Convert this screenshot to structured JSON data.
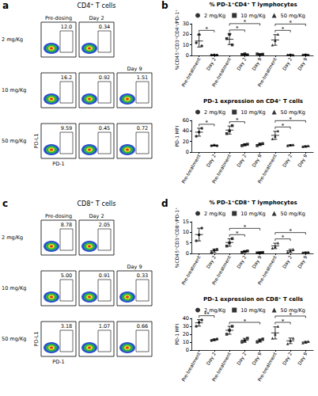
{
  "chart_data": [
    {
      "type": "gate_plots",
      "panel": "a",
      "title": "CD4⁺ T cells",
      "x_label": "PD-1",
      "y_label": "PD-L1",
      "columns": [
        "Pre-dosing",
        "Day 2",
        "Day 9"
      ],
      "rows": [
        {
          "label": "2 mg/Kg",
          "values": [
            12.0,
            0.34,
            null
          ],
          "value_labels": [
            "12.0",
            "0.34",
            null
          ]
        },
        {
          "label": "10 mg/Kg",
          "values": [
            16.2,
            0.92,
            1.51
          ],
          "value_labels": [
            "16.2",
            "0.92",
            "1.51"
          ]
        },
        {
          "label": "50 mg/Kg",
          "values": [
            9.59,
            0.45,
            0.72
          ],
          "value_labels": [
            "9.59",
            "0.45",
            "0.72"
          ]
        }
      ]
    },
    {
      "type": "dot_plot",
      "panel": "b",
      "title": "% PD-1⁺CD4⁺ T lymphocytes",
      "y_label": "%CD45⁺CD3⁺CD4⁺/PD-1⁺",
      "categories": [
        "Pre-treatment",
        "Day 2",
        "Pre-treatment",
        "Day 2",
        "Day 9",
        "Pre-treatment",
        "Day 2",
        "Day 9"
      ],
      "ylim": [
        0,
        30
      ],
      "yticks": [
        0,
        10,
        20,
        30
      ],
      "grid": false,
      "legend": "top",
      "series": [
        {
          "name": "2 mg/Kg",
          "marker": "circle",
          "color": "#000000",
          "values": [
            13.67,
            0.4,
            null,
            null,
            null,
            null,
            null,
            null
          ],
          "errors": [
            5.69,
            0.1,
            null,
            null,
            null,
            null,
            null,
            null
          ],
          "points": [
            [
              12,
              20,
              9
            ],
            [
              0.3,
              0.5,
              0.4
            ],
            null,
            null,
            null,
            null,
            null,
            null
          ],
          "significance": [
            {
              "from": 0,
              "to": 1,
              "label": "*"
            }
          ]
        },
        {
          "name": "10 mg/Kg",
          "marker": "square",
          "color": "#000000",
          "values": [
            null,
            null,
            15.33,
            1.0,
            1.17,
            null,
            null,
            null
          ],
          "errors": [
            null,
            null,
            5.03,
            0.46,
            0.35,
            null,
            null,
            null
          ],
          "points": [
            null,
            null,
            [
              16,
              20,
              10
            ],
            [
              0.9,
              1.5,
              0.6
            ],
            [
              1.5,
              0.8,
              1.2
            ],
            null,
            null,
            null
          ],
          "significance": [
            {
              "from": 2,
              "to": 3,
              "label": "*"
            },
            {
              "from": 2,
              "to": 4,
              "label": "*"
            }
          ]
        },
        {
          "name": "50 mg/Kg",
          "marker": "triangle",
          "color": "#000000",
          "values": [
            null,
            null,
            null,
            null,
            null,
            14.67,
            0.63,
            0.8
          ],
          "errors": [
            null,
            null,
            null,
            null,
            null,
            5.03,
            0.32,
            0.36
          ],
          "points": [
            null,
            null,
            null,
            null,
            null,
            [
              10,
              14,
              20
            ],
            [
              0.5,
              1.0,
              0.4
            ],
            [
              0.7,
              1.2,
              0.5
            ]
          ],
          "significance": [
            {
              "from": 5,
              "to": 6,
              "label": "*"
            },
            {
              "from": 5,
              "to": 7,
              "label": "*"
            }
          ]
        }
      ]
    },
    {
      "type": "dot_plot",
      "title": "PD-1 expression on CD4⁺ T cells",
      "y_label": "PD-1 MFI",
      "categories": [
        "Pre-treatment",
        "Day 2",
        "Pre-treatment",
        "Day 2",
        "Day 9",
        "Pre-treatment",
        "Day 2",
        "Day 9"
      ],
      "ylim": [
        0,
        60
      ],
      "yticks": [
        0,
        20,
        40,
        60
      ],
      "grid": false,
      "legend": "top",
      "series": [
        {
          "name": "2 mg/Kg",
          "marker": "circle",
          "color": "#000000",
          "values": [
            37.67,
            12.33,
            null,
            null,
            null,
            null,
            null,
            null
          ],
          "errors": [
            7.51,
            0.58,
            null,
            null,
            null,
            null,
            null,
            null
          ],
          "points": [
            [
              30,
              38,
              45
            ],
            [
              12,
              13,
              12
            ],
            null,
            null,
            null,
            null,
            null,
            null
          ],
          "significance": [
            {
              "from": 0,
              "to": 1,
              "label": "*"
            }
          ]
        },
        {
          "name": "10 mg/Kg",
          "marker": "square",
          "color": "#000000",
          "values": [
            null,
            null,
            41.67,
            13.67,
            14.33,
            null,
            null,
            null
          ],
          "errors": [
            null,
            null,
            7.64,
            1.53,
            2.08,
            null,
            null,
            null
          ],
          "points": [
            null,
            null,
            [
              35,
              40,
              50
            ],
            [
              12,
              14,
              15
            ],
            [
              12,
              15,
              16
            ],
            null,
            null,
            null
          ],
          "significance": [
            {
              "from": 2,
              "to": 3,
              "label": "*"
            }
          ]
        },
        {
          "name": "50 mg/Kg",
          "marker": "triangle",
          "color": "#000000",
          "values": [
            null,
            null,
            null,
            null,
            null,
            31.67,
            13,
            11
          ],
          "errors": [
            null,
            null,
            null,
            null,
            null,
            7.64,
            1,
            1
          ],
          "points": [
            null,
            null,
            null,
            null,
            null,
            [
              25,
              30,
              40
            ],
            [
              12,
              13,
              14
            ],
            [
              10,
              11,
              12
            ]
          ],
          "significance": [
            {
              "from": 5,
              "to": 6,
              "label": "*"
            },
            {
              "from": 5,
              "to": 7,
              "label": "*"
            }
          ]
        }
      ]
    },
    {
      "type": "gate_plots",
      "panel": "c",
      "title": "CD8⁺ T cells",
      "x_label": "PD-1",
      "y_label": "PD-L1",
      "columns": [
        "Pre-dosing",
        "Day 2",
        "Day 9"
      ],
      "rows": [
        {
          "label": "2 mg/Kg",
          "values": [
            8.78,
            2.05,
            null
          ],
          "value_labels": [
            "8.78",
            "2.05",
            null
          ]
        },
        {
          "label": "10 mg/Kg",
          "values": [
            5.0,
            0.91,
            0.33
          ],
          "value_labels": [
            "5.00",
            "0.91",
            "0.33"
          ]
        },
        {
          "label": "50 mg/Kg",
          "values": [
            3.18,
            1.07,
            0.66
          ],
          "value_labels": [
            "3.18",
            "1.07",
            "0.66"
          ]
        }
      ]
    },
    {
      "type": "dot_plot",
      "panel": "d",
      "title": "% PD-1⁺CD8⁺ T lymphocytes",
      "y_label": "%CD45⁺CD3⁺CD8⁺/PD-1⁺",
      "categories": [
        "Pre-treatment",
        "Day 2",
        "Pre-treatment",
        "Day 2",
        "Day 9",
        "Pre-treatment",
        "Day 2",
        "Day 9"
      ],
      "ylim": [
        0,
        15
      ],
      "yticks": [
        0,
        5,
        10,
        15
      ],
      "grid": false,
      "legend": "top",
      "series": [
        {
          "name": "2 mg/Kg",
          "marker": "circle",
          "color": "#000000",
          "values": [
            8.93,
            1.33,
            null,
            null,
            null,
            null,
            null,
            null
          ],
          "errors": [
            3.0,
            0.76,
            null,
            null,
            null,
            null,
            null,
            null
          ],
          "points": [
            [
              6,
              8.8,
              12
            ],
            [
              0.5,
              1.5,
              2
            ],
            null,
            null,
            null,
            null,
            null,
            null
          ]
        },
        {
          "name": "10 mg/Kg",
          "marker": "square",
          "color": "#000000",
          "values": [
            null,
            null,
            5.17,
            0.87,
            0.4,
            null,
            null,
            null
          ],
          "errors": [
            null,
            null,
            1.76,
            0.35,
            0.1,
            null,
            null,
            null
          ],
          "points": [
            null,
            null,
            [
              3.5,
              5,
              7
            ],
            [
              0.5,
              0.9,
              1.2
            ],
            [
              0.3,
              0.4,
              0.5
            ],
            null,
            null,
            null
          ],
          "significance": [
            {
              "from": 2,
              "to": 3,
              "label": "*"
            },
            {
              "from": 2,
              "to": 4,
              "label": "*"
            }
          ]
        },
        {
          "name": "50 mg/Kg",
          "marker": "triangle",
          "color": "#000000",
          "values": [
            null,
            null,
            null,
            null,
            null,
            3.57,
            1.27,
            0.53
          ],
          "errors": [
            null,
            null,
            null,
            null,
            null,
            1.29,
            0.67,
            0.15
          ],
          "points": [
            null,
            null,
            null,
            null,
            null,
            [
              2.5,
              3.2,
              5
            ],
            [
              0.7,
              1.1,
              2
            ],
            [
              0.4,
              0.5,
              0.7
            ]
          ],
          "significance": [
            {
              "from": 5,
              "to": 6,
              "label": "*"
            },
            {
              "from": 5,
              "to": 7,
              "label": "*"
            }
          ]
        }
      ]
    },
    {
      "type": "dot_plot",
      "title": "PD-1 expression on CD8⁺ T cells",
      "y_label": "PD-1 MFI",
      "categories": [
        "Pre-treatment",
        "Day 2",
        "Pre-treatment",
        "Day 2",
        "Day 9",
        "Pre-treatment",
        "Day 2",
        "Day 9"
      ],
      "ylim": [
        0,
        40
      ],
      "yticks": [
        0,
        10,
        20,
        30,
        40
      ],
      "grid": false,
      "legend": "top",
      "series": [
        {
          "name": "2 mg/Kg",
          "marker": "circle",
          "color": "#000000",
          "values": [
            34.33,
            13,
            null,
            null,
            null,
            null,
            null,
            null
          ],
          "errors": [
            4.04,
            1,
            null,
            null,
            null,
            null,
            null,
            null
          ],
          "points": [
            [
              30,
              35,
              38
            ],
            [
              12,
              13,
              14
            ],
            null,
            null,
            null,
            null,
            null,
            null
          ],
          "significance": [
            {
              "from": 0,
              "to": 1,
              "label": "**"
            }
          ]
        },
        {
          "name": "10 mg/Kg",
          "marker": "square",
          "color": "#000000",
          "values": [
            null,
            null,
            25,
            12.33,
            12,
            null,
            null,
            null
          ],
          "errors": [
            null,
            null,
            5,
            2.52,
            2,
            null,
            null,
            null
          ],
          "points": [
            null,
            null,
            [
              20,
              25,
              30
            ],
            [
              10,
              12,
              15
            ],
            [
              10,
              12,
              14
            ],
            null,
            null,
            null
          ],
          "significance": [
            {
              "from": 2,
              "to": 4,
              "label": "*"
            }
          ]
        },
        {
          "name": "50 mg/Kg",
          "marker": "triangle",
          "color": "#000000",
          "values": [
            null,
            null,
            null,
            null,
            null,
            21.67,
            11.67,
            10
          ],
          "errors": [
            null,
            null,
            null,
            null,
            null,
            7.64,
            3.51,
            1
          ],
          "points": [
            null,
            null,
            null,
            null,
            null,
            [
              15,
              20,
              30
            ],
            [
              8,
              12,
              15
            ],
            [
              9,
              10,
              11
            ]
          ],
          "significance": [
            {
              "from": 5,
              "to": 6,
              "label": "*"
            },
            {
              "from": 5,
              "to": 7,
              "label": "*"
            }
          ]
        }
      ]
    }
  ]
}
